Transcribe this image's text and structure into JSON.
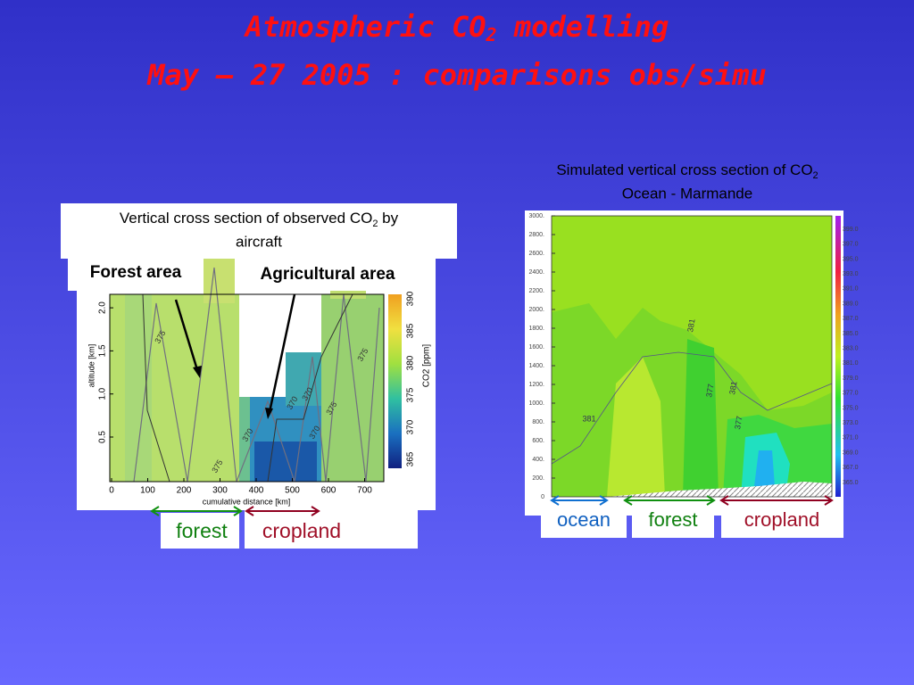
{
  "title": {
    "line1": {
      "text": "Atmospheric CO",
      "sub": "2",
      "rest": " modelling"
    },
    "line2": "May – 27 2005 : comparisons obs/simu"
  },
  "left_panel": {
    "caption": {
      "text": "Vertical cross section of observed CO",
      "sub": "2",
      "rest": " by",
      "line2": "aircraft"
    },
    "annotations": [
      "Forest area",
      "Agricultural area"
    ],
    "plot": {
      "x_ticks": [
        "0",
        "100",
        "200",
        "300",
        "400",
        "500",
        "600",
        "700"
      ],
      "x_label": "cumulative distance [km]",
      "y_ticks": [
        "0.5",
        "1.0",
        "1.5",
        "2.0"
      ],
      "y_label": "altitude [km]",
      "colorbar_ticks": [
        "365",
        "370",
        "375",
        "380",
        "385",
        "390"
      ],
      "colorbar_label": "CO2 [ppm]",
      "contour_labels": [
        "375",
        "375",
        "370",
        "370",
        "370",
        "375",
        "375",
        "370"
      ]
    },
    "regions": [
      "forest",
      "cropland"
    ]
  },
  "right_panel": {
    "caption": {
      "text": "Simulated vertical cross section of CO",
      "sub": "2",
      "line2": "Ocean - Marmande"
    },
    "plot": {
      "y_ticks": [
        "0",
        "200.",
        "400.",
        "600.",
        "800.",
        "1000.",
        "1200.",
        "1400.",
        "1600.",
        "1800.",
        "2000.",
        "2200.",
        "2400.",
        "2600.",
        "2800.",
        "3000."
      ],
      "colorbar_ticks": [
        "365.0",
        "367.0",
        "369.0",
        "371.0",
        "373.0",
        "375.0",
        "377.0",
        "379.0",
        "381.0",
        "383.0",
        "385.0",
        "387.0",
        "389.0",
        "391.0",
        "393.0",
        "395.0",
        "397.0",
        "399.0"
      ],
      "contour_labels": [
        "381",
        "381",
        "377",
        "381",
        "377"
      ]
    },
    "regions": [
      "ocean",
      "forest",
      "cropland"
    ]
  }
}
